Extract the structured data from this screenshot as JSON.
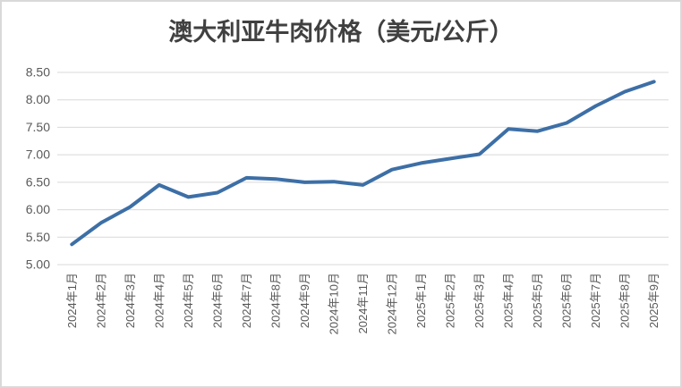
{
  "frame": {
    "background_color": "#FFFFFF",
    "border_color": "#D9D9D9"
  },
  "chart_data": {
    "type": "line",
    "title": "澳大利亚牛肉价格（美元/公斤）",
    "categories": [
      "2024年1月",
      "2024年2月",
      "2024年3月",
      "2024年4月",
      "2024年5月",
      "2024年6月",
      "2024年7月",
      "2024年8月",
      "2024年9月",
      "2024年10月",
      "2024年11月",
      "2024年12月",
      "2025年1月",
      "2025年2月",
      "2025年3月",
      "2025年4月",
      "2025年5月",
      "2025年6月",
      "2025年7月",
      "2025年8月",
      "2025年9月"
    ],
    "values": [
      5.37,
      5.76,
      6.05,
      6.45,
      6.23,
      6.31,
      6.58,
      6.56,
      6.5,
      6.51,
      6.45,
      6.73,
      6.85,
      6.93,
      7.01,
      7.47,
      7.43,
      7.58,
      7.89,
      8.15,
      8.33
    ],
    "xlabel": "",
    "ylabel": "",
    "ylim": [
      5.0,
      8.5
    ],
    "ytick_step": 0.5,
    "ytick_labels": [
      "8.50",
      "8.00",
      "7.50",
      "7.00",
      "6.50",
      "6.00",
      "5.50",
      "5.00"
    ],
    "grid": "horizontal",
    "legend": "none",
    "x_labels_rotation_deg": -90,
    "line_color": "#3D6FA6",
    "gridline_color": "#D9D9D9",
    "tick_label_color": "#595959",
    "title_color": "#404040"
  }
}
